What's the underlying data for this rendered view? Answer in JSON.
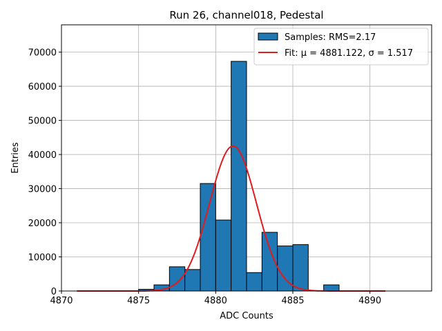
{
  "chart_data": {
    "type": "bar",
    "title": "Run 26, channel018, Pedestal",
    "xlabel": "ADC Counts",
    "ylabel": "Entries",
    "xlim": [
      4870,
      4894
    ],
    "ylim": [
      0,
      78000
    ],
    "xticks": [
      4870,
      4875,
      4880,
      4885,
      4890
    ],
    "yticks": [
      0,
      10000,
      20000,
      30000,
      40000,
      50000,
      60000,
      70000
    ],
    "grid": true,
    "legend_position": "top-right",
    "histogram": {
      "name": "Samples: RMS=2.17",
      "color": "#1f77b4",
      "bin_edges": [
        4875.0,
        4876.0,
        4877.0,
        4878.0,
        4879.0,
        4880.0,
        4881.0,
        4882.0,
        4883.0,
        4884.0,
        4885.0,
        4886.0,
        4887.0,
        4888.0
      ],
      "values": [
        500,
        1800,
        7100,
        6300,
        31500,
        20800,
        67300,
        5400,
        17200,
        13200,
        13600,
        0,
        1800
      ]
    },
    "fit": {
      "name": "Fit: μ = 4881.122, σ = 1.517",
      "color": "#e41a1c",
      "mu": 4881.122,
      "sigma": 1.517,
      "amplitude": 42500,
      "x_range": [
        4871,
        4891
      ]
    }
  }
}
